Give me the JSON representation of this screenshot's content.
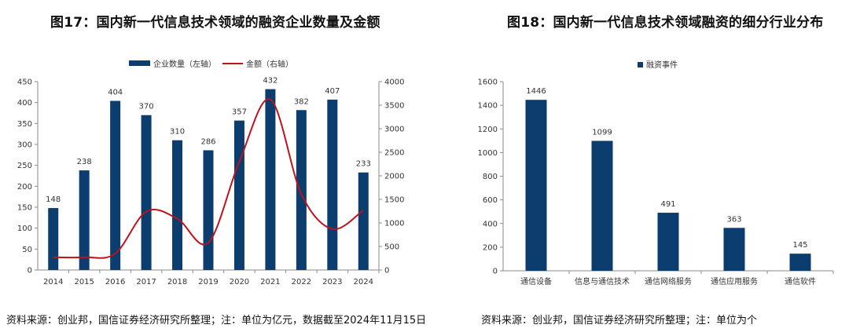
{
  "figures": [
    {
      "title": "图17：国内新一代信息技术领域的融资企业数量及金额",
      "source": "资料来源：创业邦，国信证券经济研究所整理；注：单位为亿元，数据截至2024年11月15日"
    },
    {
      "title": "图18：国内新一代信息技术领域融资的细分行业分布",
      "source": "资料来源：创业邦，国信证券经济研究所整理；注：单位为个"
    }
  ],
  "chart_data": [
    {
      "type": "bar",
      "categories": [
        "2014",
        "2015",
        "2016",
        "2017",
        "2018",
        "2019",
        "2020",
        "2021",
        "2022",
        "2023",
        "2024"
      ],
      "series": [
        {
          "name": "企业数量（左轴）",
          "type": "bar",
          "axis": "left",
          "color": "#0b3d6e",
          "values": [
            148,
            238,
            404,
            370,
            310,
            286,
            357,
            432,
            382,
            407,
            233
          ]
        },
        {
          "name": "金额（右轴）",
          "type": "line",
          "axis": "right",
          "color": "#c0121b",
          "values": [
            270,
            270,
            350,
            1240,
            1090,
            580,
            2300,
            3620,
            1610,
            870,
            1270
          ]
        }
      ],
      "ylim_left": [
        0,
        450
      ],
      "yticks_left": [
        0,
        50,
        100,
        150,
        200,
        250,
        300,
        350,
        400,
        450
      ],
      "ylim_right": [
        0,
        4000
      ],
      "yticks_right": [
        0,
        500,
        1000,
        1500,
        2000,
        2500,
        3000,
        3500,
        4000
      ],
      "legend_position": "top-center",
      "grid": false
    },
    {
      "type": "bar",
      "categories": [
        "通信设备",
        "信息与通信技术",
        "通信网络服务",
        "通信应用服务",
        "通信软件"
      ],
      "series": [
        {
          "name": "融资事件",
          "color": "#0b3d6e",
          "values": [
            1446,
            1099,
            491,
            363,
            145
          ]
        }
      ],
      "ylim": [
        0,
        1600
      ],
      "yticks": [
        0,
        200,
        400,
        600,
        800,
        1000,
        1200,
        1400,
        1600
      ],
      "legend_position": "top-center",
      "grid": false
    }
  ]
}
